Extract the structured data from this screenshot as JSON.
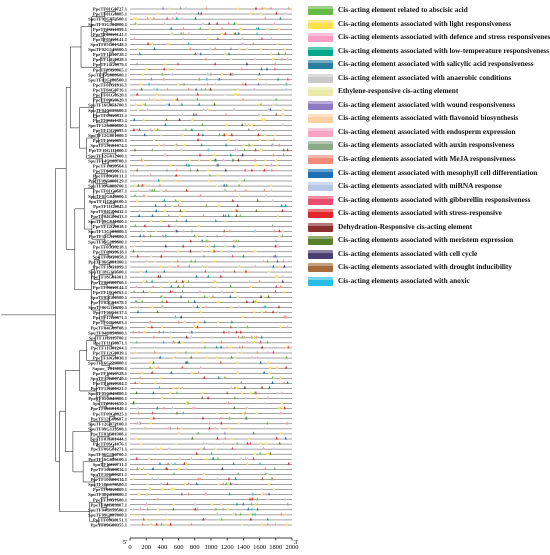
{
  "genes": [
    "PpeTF01G0727.1",
    "PpeTF01G0085.1",
    "SpuTF01G072500.1",
    "SpuTF03G104900.1",
    "PpeTF03G1099.1",
    "PpeTF09G0141.1",
    "PpeTF05G0141.1",
    "SpuTF05G01348.1",
    "SpuTF02G143500.1",
    "PpeTF14G0728.1",
    "PpeTF14G0828.1",
    "PpeTF14G0979.1",
    "PpeTF05G0065.1",
    "SpuTF05G000600.1",
    "SpuTF01G186500.1",
    "PpeTF01G1816.1",
    "PpeTF04G0716.1",
    "PpeTF01G0520.1",
    "PpeTF09G0620.1",
    "SpuTF16G051700.1",
    "SpuTF04G123600.1",
    "PpeTF09G0833.1",
    "PpeTF03G1385.1",
    "SpuTF12G000800.1",
    "PpeTF15G0095.1",
    "SpuTF12G001000.1",
    "PpeTF15G0095.1",
    "SpuTF15G01074.1",
    "PpeTF10G111000.1",
    "SpuTF12G012400.1",
    "SpuTF14G108700.1",
    "PpeTF14G0564.1",
    "PpeTF04G0613.1",
    "PpeTF09G0131.1",
    "PpeTF09G000129.1",
    "SpuTF09G009700.1",
    "PpeTF01G0587.1",
    "SpuTF01G046900.1",
    "SpuTF11G041100.1",
    "PpeTF11G0045.1",
    "SpuTF04G00432.1",
    "PpeTF04G00433.1",
    "SpuTF09G041800.1",
    "PpeTF12G0018.1",
    "SpuTF13G108000.1",
    "PpeTF13G119800.1",
    "SpuTF05G189800.1",
    "PpeTF05G0218.1",
    "PpeTF09G0618.1",
    "SpuTF06G0058.1",
    "PpeTF06G001300.1",
    "PpeTF18G1099.1",
    "SpuTF18G113500.1",
    "PpeTF18G01301.1",
    "PpeTF06G00760.1",
    "PpeTF06G0144.1",
    "PpeTF18G0763.1",
    "SpuTF05G00580.1",
    "PpeTF05G01378.1",
    "SpuTF06G114200.1",
    "PpeTF06G1137.1",
    "PpeTF17G0071.1",
    "PpeTF04G0503.1",
    "PpeTF04G00708.1",
    "SpuTF04G054800.1",
    "SpuTF11G115700.1",
    "PpeTF11G0071.1",
    "PpeTF11G01204.1",
    "PpeTF12G0039.1",
    "PpeTF10G0030.1",
    "SpuTF16G229800.1",
    "Sapur_T013000.1",
    "PpeTF15G0528.1",
    "SpuTF15G00740.1",
    "PpeTF12G0504.1",
    "PpeTF12G00321.1",
    "SpuTF05G043800.1",
    "PpeTF05G043900.1",
    "SpuTF05G1650.1",
    "PpeTF06G01840.1",
    "PpeTF09G0825.1",
    "PpeTF12G00687.1",
    "SpuTF12G072100.1",
    "SpuTF09G135500.1",
    "PpeTF03G01308.1",
    "SpuTF03G01444.1",
    "PpeTF06G1076.1",
    "PpeTF06G01271.1",
    "SpuTF06G104700.1",
    "PpeTF16G085100.1",
    "SpuTF16G0731.1",
    "PpeTF16G00814.1",
    "SpuTF10G00301.1",
    "PpeTF10G00334.1",
    "SpuTF10G178500.1",
    "PpeTF08G0809.1",
    "SpuTF08G038800.1",
    "PpeTF14G1680.1",
    "PpeTF04G03007.1",
    "SpuTF04G159500.1",
    "SpuTF09G007000.1",
    "PpeTF09G0151.1",
    "PpeTF09G00355.1"
  ],
  "axis": {
    "ticks": [
      "0",
      "200",
      "400",
      "600",
      "800",
      "1000",
      "1200",
      "1400",
      "1600",
      "1800",
      "2000"
    ],
    "start_label": "5'",
    "end_label": "3'"
  },
  "legend": [
    {
      "label": "Cis-acting element related to abscisic acid",
      "color": "#66bb44"
    },
    {
      "label": "Cis-acting elements associated with light responsiveness",
      "color": "#ffe14d"
    },
    {
      "label": "Cis-acting elements associated with defence and stress responsiveness",
      "color": "#ff9ec5"
    },
    {
      "label": "Cis-acting elements associated with low-temperature responsiveness",
      "color": "#00a88a"
    },
    {
      "label": "Cis-acting element associated with salicylic acid responsiveness",
      "color": "#2a7f9e"
    },
    {
      "label": "Cis-acting element associated with anaerobic conditions",
      "color": "#c9c9c9"
    },
    {
      "label": "Ethylene-responsive cis-acting element",
      "color": "#eceaa8"
    },
    {
      "label": "Cis-acting element associated with wound responsiveness",
      "color": "#8e7cc3"
    },
    {
      "label": "Cis-acting elements associated with flavonoid biosynthesis",
      "color": "#ffcfa4"
    },
    {
      "label": "Cis-acting element associated with endosperm expression",
      "color": "#f6a3c4"
    },
    {
      "label": "Cis-acting elements associated with auxin responsiveness",
      "color": "#8aaa8a"
    },
    {
      "label": "Cis-acting elements associated with MeJA responsiveness",
      "color": "#f28a78"
    },
    {
      "label": "Cis-acting element associated with mesophyll cell differentiation",
      "color": "#1e6fb5"
    },
    {
      "label": "Cis-acting elements associated with miRNA response",
      "color": "#b7c6e6"
    },
    {
      "label": "Cis-acting elements associated with gibberellin responsiveness",
      "color": "#e94d6d"
    },
    {
      "label": "Cis-acting elements associated with stress-responsive",
      "color": "#e4252c"
    },
    {
      "label": "Dehydration-Responsive cis-acting element",
      "color": "#8c2f2f"
    },
    {
      "label": "Cis-acting elements associated with meristem expression",
      "color": "#5a7f2c"
    },
    {
      "label": "Cis-acting elements associated with cell cycle",
      "color": "#4a3f72"
    },
    {
      "label": "Cis-acting elements associated with drought inducibility",
      "color": "#a56b3d"
    },
    {
      "label": "Cis-acting elements associated with anoxic",
      "color": "#27bde8"
    }
  ]
}
